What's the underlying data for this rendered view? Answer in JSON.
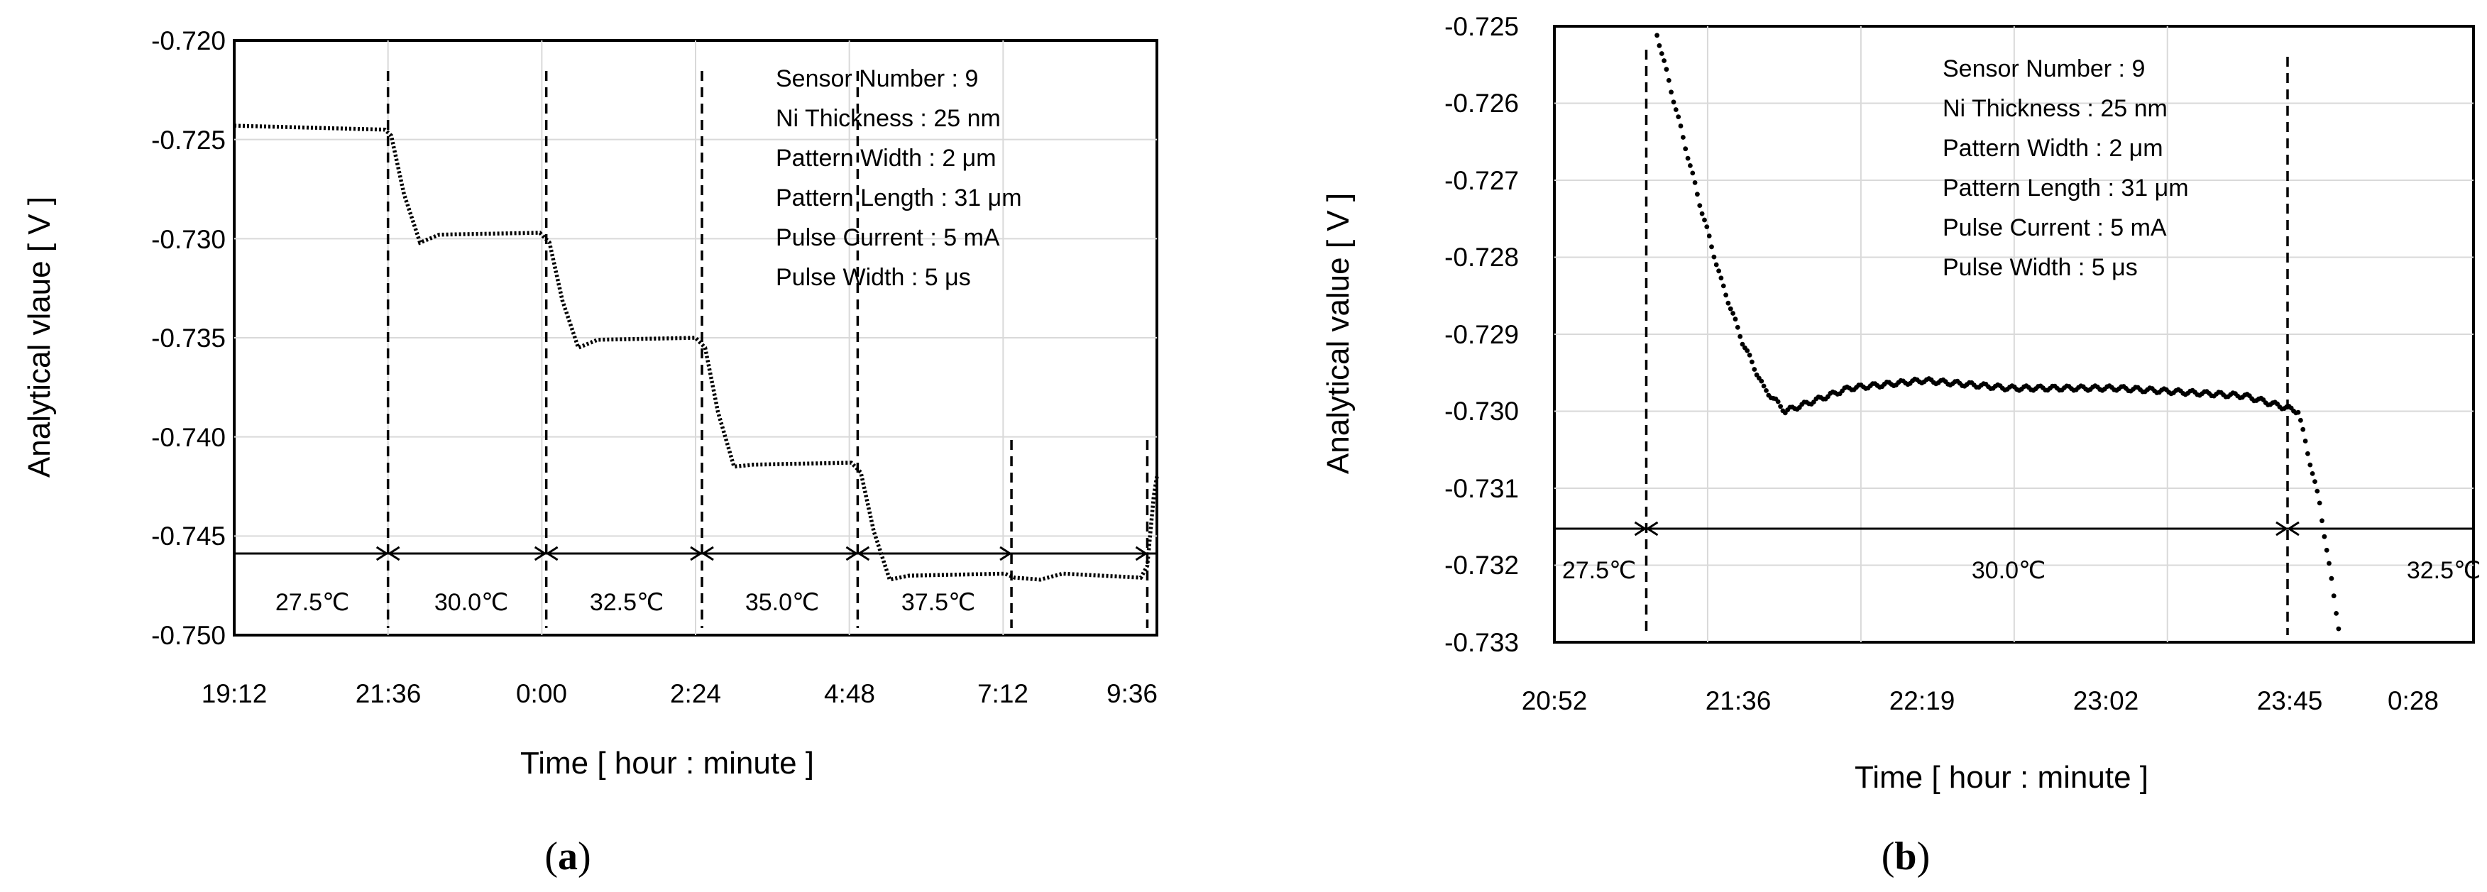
{
  "charts": [
    {
      "panel": "a",
      "chart_data": {
        "type": "scatter",
        "xlabel": "Time [ hour : minute ]",
        "ylabel": "Analytical vlaue [ V ]",
        "x_ticks": [
          "19:12",
          "21:36",
          "0:00",
          "2:24",
          "4:48",
          "7:12",
          "9:36"
        ],
        "y_ticks": [
          "-0.720",
          "-0.725",
          "-0.730",
          "-0.735",
          "-0.740",
          "-0.745",
          "-0.750"
        ],
        "ylim": [
          -0.75,
          -0.72
        ],
        "xlim_hours": [
          19.2,
          33.6
        ],
        "grid": true,
        "annotations": [
          "Sensor Number : 9",
          "Ni Thickness : 25 nm",
          "Pattern Width : 2 μm",
          "Pattern Length : 31 μm",
          "Pulse Current : 5 mA",
          "Pulse Width : 5 μs"
        ],
        "temperature_segments": [
          "27.5℃",
          "30.0℃",
          "32.5℃",
          "35.0℃",
          "37.5℃"
        ],
        "boundaries_hours": [
          21.6,
          24.07,
          26.5,
          28.93,
          31.33,
          33.45
        ],
        "levels": [
          -0.7243,
          -0.7297,
          -0.735,
          -0.7413,
          -0.7469,
          -0.742
        ],
        "dips": [
          -0.7302,
          -0.7355,
          -0.7415,
          -0.7472
        ]
      }
    },
    {
      "panel": "b",
      "chart_data": {
        "type": "scatter",
        "xlabel": "Time [ hour : minute ]",
        "ylabel": "Analytical value [ V ]",
        "x_ticks": [
          "20:52",
          "21:36",
          "22:19",
          "23:02",
          "23:45",
          "0:28"
        ],
        "y_ticks": [
          "-0.725",
          "-0.726",
          "-0.727",
          "-0.728",
          "-0.729",
          "-0.730",
          "-0.731",
          "-0.732",
          "-0.733"
        ],
        "ylim": [
          -0.733,
          -0.725
        ],
        "xlim_hours": [
          20.87,
          25.17
        ],
        "grid": true,
        "annotations": [
          "Sensor Number : 9",
          "Ni Thickness : 25 nm",
          "Pattern Width : 2 μm",
          "Pattern Length : 31 μm",
          "Pulse Current : 5 mA",
          "Pulse Width : 5 μs"
        ],
        "temperature_segments": [
          "27.5℃",
          "30.0℃",
          "32.5℃"
        ],
        "boundaries_hours": [
          21.3,
          24.3
        ],
        "points": [
          {
            "x": 21.35,
            "y": -0.7251
          },
          {
            "x": 21.45,
            "y": -0.7262
          },
          {
            "x": 21.55,
            "y": -0.7273
          },
          {
            "x": 21.65,
            "y": -0.7283
          },
          {
            "x": 21.75,
            "y": -0.7291
          },
          {
            "x": 21.85,
            "y": -0.7297
          },
          {
            "x": 21.95,
            "y": -0.73
          },
          {
            "x": 22.05,
            "y": -0.7299
          },
          {
            "x": 22.25,
            "y": -0.7297
          },
          {
            "x": 22.6,
            "y": -0.7296
          },
          {
            "x": 23.0,
            "y": -0.7297
          },
          {
            "x": 23.5,
            "y": -0.7297
          },
          {
            "x": 24.1,
            "y": -0.7298
          },
          {
            "x": 24.35,
            "y": -0.73
          },
          {
            "x": 24.45,
            "y": -0.7312
          },
          {
            "x": 24.55,
            "y": -0.733
          }
        ]
      }
    }
  ]
}
